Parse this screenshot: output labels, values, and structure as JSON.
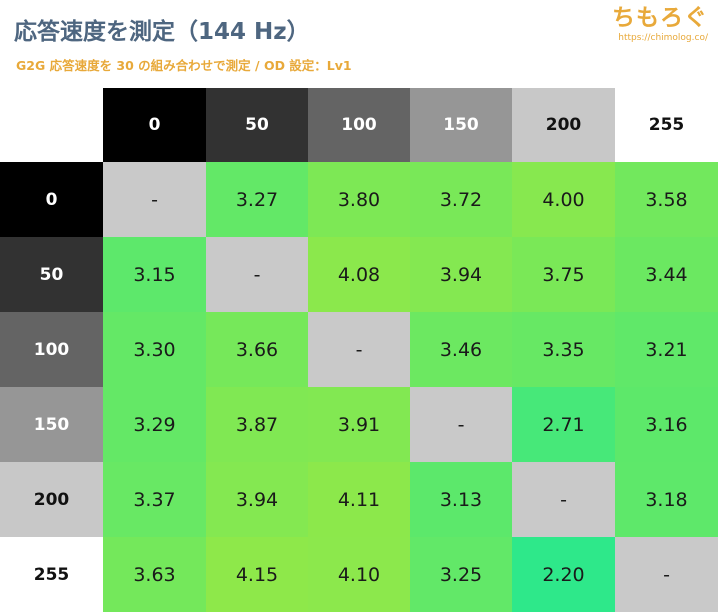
{
  "header": {
    "title": "応答速度を測定（144 Hz）",
    "subtitle": "G2G 応答速度を 30 の組み合わせで測定 / OD 設定：Lv1",
    "logo_text": "ちもろぐ",
    "logo_url": "https://chimolog.co/"
  },
  "chart_data": {
    "type": "heatmap",
    "title": "応答速度を測定（144 Hz）",
    "subtitle": "G2G 応答速度を 30 の組み合わせで測定 / OD 設定：Lv1",
    "columns": [
      "0",
      "50",
      "100",
      "150",
      "200",
      "255"
    ],
    "rows": [
      "0",
      "50",
      "100",
      "150",
      "200",
      "255"
    ],
    "values": [
      [
        "-",
        "3.27",
        "3.80",
        "3.72",
        "4.00",
        "3.58"
      ],
      [
        "3.15",
        "-",
        "4.08",
        "3.94",
        "3.75",
        "3.44"
      ],
      [
        "3.30",
        "3.66",
        "-",
        "3.46",
        "3.35",
        "3.21"
      ],
      [
        "3.29",
        "3.87",
        "3.91",
        "-",
        "2.71",
        "3.16"
      ],
      [
        "3.37",
        "3.94",
        "4.11",
        "3.13",
        "-",
        "3.18"
      ],
      [
        "3.63",
        "4.15",
        "4.10",
        "3.25",
        "2.20",
        "-"
      ]
    ],
    "colors": {
      "diagonal": "#c9c9c9",
      "scale_low": "#2ee88a",
      "scale_high": "#8ee84a",
      "title": "#4e6680",
      "accent": "#e8a93a"
    }
  }
}
